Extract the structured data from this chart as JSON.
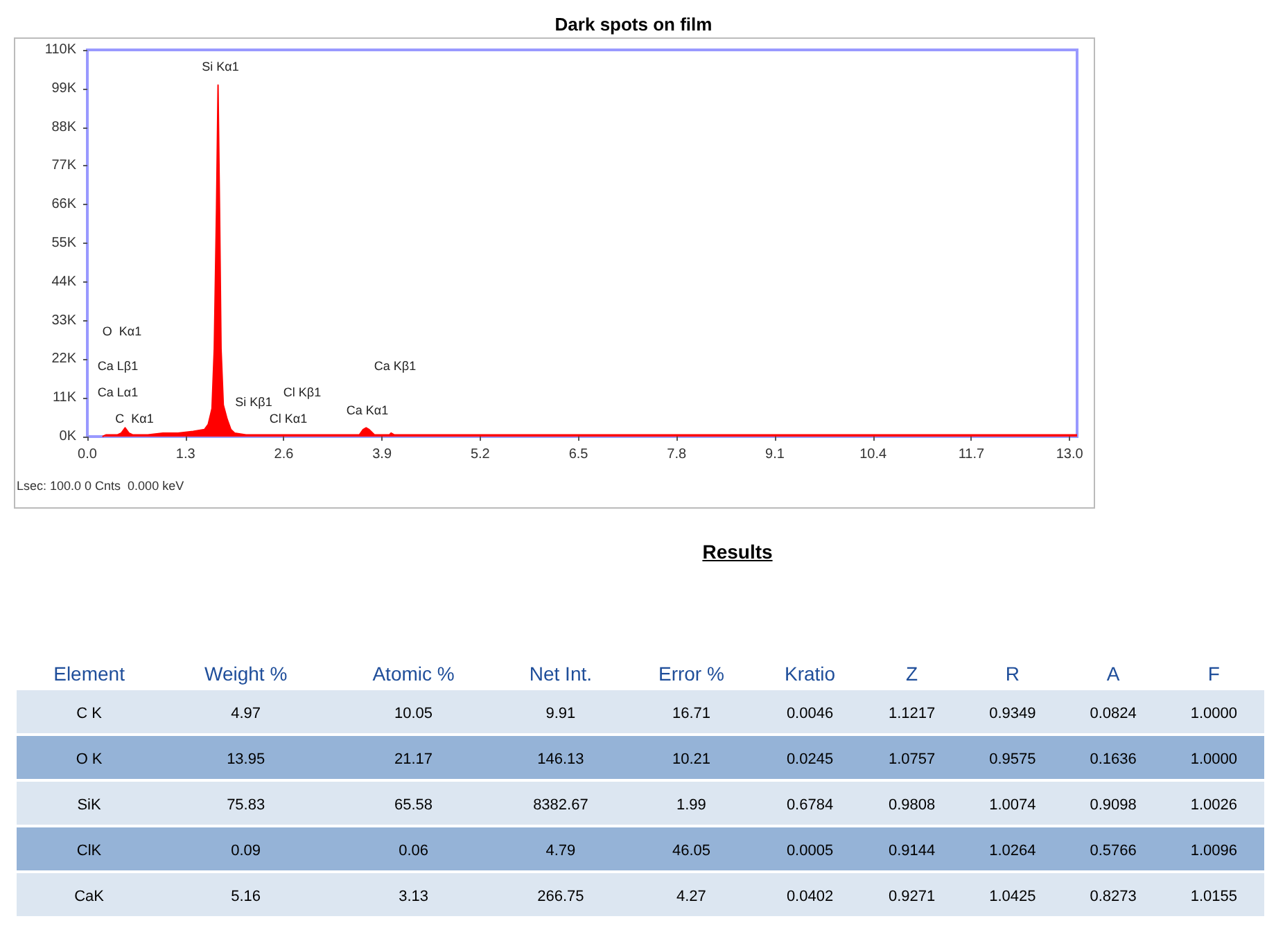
{
  "chart_data": [
    {
      "type": "area",
      "title": "Dark spots on film",
      "x": [
        0.2,
        0.25,
        0.4,
        0.45,
        0.5,
        0.55,
        0.6,
        0.8,
        1.0,
        1.2,
        1.4,
        1.55,
        1.6,
        1.65,
        1.68,
        1.71,
        1.73,
        1.75,
        1.77,
        1.8,
        1.85,
        1.9,
        1.95,
        2.1,
        2.4,
        2.7,
        3.0,
        3.4,
        3.6,
        3.65,
        3.69,
        3.73,
        3.8,
        4.0,
        4.02,
        4.06,
        4.5,
        6.0,
        8.0,
        10.0,
        13.1
      ],
      "series": [
        {
          "color": "#ff0000",
          "values": [
            0,
            500,
            500,
            1000,
            2500,
            1000,
            500,
            500,
            1000,
            1000,
            1500,
            2000,
            3500,
            8000,
            25000,
            65000,
            100000,
            65000,
            25000,
            9000,
            5000,
            2000,
            1000,
            500,
            500,
            500,
            500,
            500,
            500,
            2000,
            2500,
            2000,
            500,
            500,
            1000,
            500,
            500,
            500,
            500,
            500,
            500
          ]
        }
      ],
      "xlim": [
        0,
        13.1
      ],
      "xticks": [
        {
          "value": 0,
          "label": "0.0"
        },
        1.3,
        2.6,
        3.9,
        5.2,
        6.5,
        7.8,
        9.1,
        10.4,
        11.7,
        {
          "value": 13,
          "label": "13.0"
        }
      ],
      "ylim": [
        0,
        110000
      ],
      "yticks": [
        {
          "value": 0,
          "label": "0K"
        },
        {
          "value": 11000,
          "label": "11K"
        },
        {
          "value": 22000,
          "label": "22K"
        },
        {
          "value": 33000,
          "label": "33K"
        },
        {
          "value": 44000,
          "label": "44K"
        },
        {
          "value": 55000,
          "label": "55K"
        },
        {
          "value": 66000,
          "label": "66K"
        },
        {
          "value": 77000,
          "label": "77K"
        },
        {
          "value": 88000,
          "label": "88K"
        },
        {
          "value": 99000,
          "label": "99K"
        },
        {
          "value": 110000,
          "label": "110K"
        }
      ],
      "annotations": [
        "Si Kα1",
        "O  Kα1",
        "Ca Lβ1",
        "Ca Lα1",
        "C  Kα1",
        "Si Kβ1",
        "Cl Kβ1",
        "Cl Kα1",
        "Ca Kα1",
        "Ca Kβ1",
        "Lsec: 100.0 0 Cnts  0.000 keV"
      ]
    },
    {
      "type": "other",
      "title": "Results",
      "ylabel": "Element",
      "categories": [
        "Weight %",
        "Atomic %",
        "Net Int.",
        "Error %",
        "Kratio",
        "Z",
        "R",
        "A",
        "F"
      ],
      "y_categories": [
        "C K",
        "O K",
        "SiK",
        "ClK",
        "CaK"
      ],
      "cell_labels": [
        [
          "4.97",
          "10.05",
          "9.91",
          "16.71",
          "0.0046",
          "1.1217",
          "0.9349",
          "0.0824",
          "1.0000"
        ],
        [
          "13.95",
          "21.17",
          "146.13",
          "10.21",
          "0.0245",
          "1.0757",
          "0.9575",
          "0.1636",
          "1.0000"
        ],
        [
          "75.83",
          "65.58",
          "8382.67",
          "1.99",
          "0.6784",
          "0.9808",
          "1.0074",
          "0.9098",
          "1.0026"
        ],
        [
          "0.09",
          "0.06",
          "4.79",
          "46.05",
          "0.0005",
          "0.9144",
          "1.0264",
          "0.5766",
          "1.0096"
        ],
        [
          "5.16",
          "3.13",
          "266.75",
          "4.27",
          "0.0402",
          "0.9271",
          "1.0425",
          "0.8273",
          "1.0155"
        ]
      ]
    }
  ]
}
